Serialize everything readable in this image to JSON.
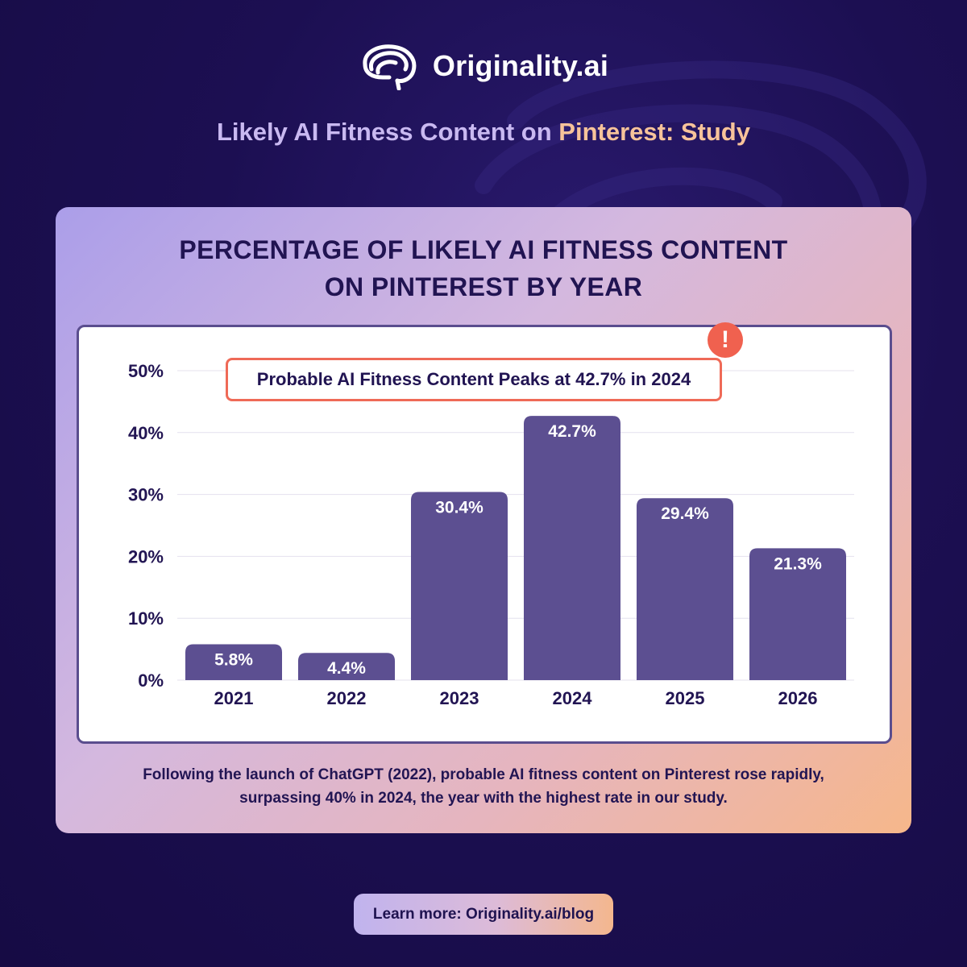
{
  "brand": {
    "name": "Originality.ai",
    "logo_icon": "brain-icon"
  },
  "header": {
    "subtitle_main": "Likely AI Fitness Content on ",
    "subtitle_accent": "Pinterest: Study"
  },
  "chart": {
    "title_line1": "PERCENTAGE OF LIKELY AI FITNESS CONTENT",
    "title_line2": "ON PINTEREST BY YEAR",
    "callout": "Probable AI Fitness Content Peaks at 42.7% in 2024",
    "alert_icon": "!"
  },
  "chart_data": {
    "type": "bar",
    "categories": [
      "2021",
      "2022",
      "2023",
      "2024",
      "2025",
      "2026"
    ],
    "values": [
      5.8,
      4.4,
      30.4,
      42.7,
      29.4,
      21.3
    ],
    "value_labels": [
      "5.8%",
      "4.4%",
      "30.4%",
      "42.7%",
      "29.4%",
      "21.3%"
    ],
    "y_ticks": [
      0,
      10,
      20,
      30,
      40,
      50
    ],
    "y_tick_labels": [
      "0%",
      "10%",
      "20%",
      "30%",
      "40%",
      "50%"
    ],
    "ylim": [
      0,
      50
    ],
    "title": "PERCENTAGE OF LIKELY AI FITNESS CONTENT ON PINTEREST BY YEAR",
    "grid": true,
    "bar_color": "#5c4f91"
  },
  "caption": {
    "line1": "Following the launch of ChatGPT (2022), probable AI fitness content on Pinterest rose rapidly,",
    "line2": "surpassing 40% in 2024, the year with the highest rate in our study."
  },
  "footer": {
    "learn_more": "Learn more: Originality.ai/blog"
  },
  "colors": {
    "background": "#1c0f52",
    "accent": "#f7c39a",
    "bar": "#5c4f91",
    "callout_border": "#ef6a57"
  }
}
